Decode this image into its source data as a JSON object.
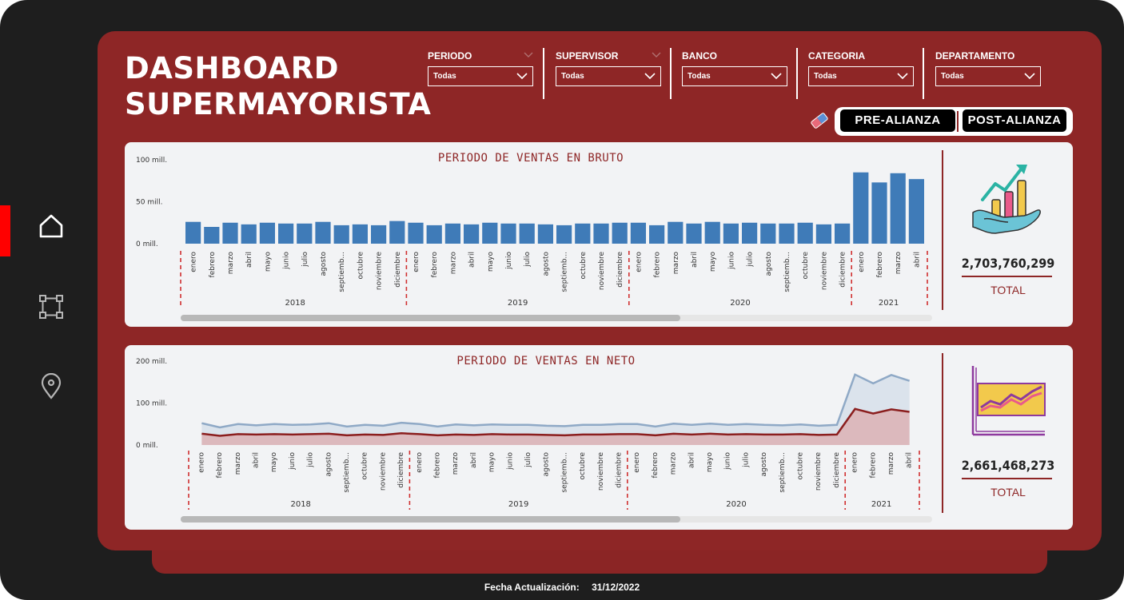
{
  "header": {
    "title_line1": "DASHBOARD",
    "title_line2": "SUPERMAYORISTA"
  },
  "filters": [
    {
      "label": "PERIODO",
      "value": "Todas"
    },
    {
      "label": "SUPERVISOR",
      "value": "Todas"
    },
    {
      "label": "BANCO",
      "value": "Todas"
    },
    {
      "label": "CATEGORIA",
      "value": "Todas"
    },
    {
      "label": "DEPARTAMENTO",
      "value": "Todas"
    }
  ],
  "toggle": {
    "pre_label": "PRE-ALIANZA",
    "post_label": "POST-ALIANZA"
  },
  "sidebar": {
    "icons": [
      "home-icon",
      "flow-icon",
      "location-pin-icon"
    ],
    "active_index": 0
  },
  "colors": {
    "accent": "#8e2626",
    "bar": "#3f7bb8",
    "line_total": "#8fa9c6",
    "line_net": "#8b1e1e",
    "active_nav": "#ff0000"
  },
  "footer": {
    "label": "Fecha Actualización:",
    "date": "31/12/2022"
  },
  "panels": [
    {
      "title": "PERIODO DE VENTAS EN BRUTO",
      "kpi_value": "2,703,760,299",
      "kpi_label": "TOTAL",
      "icon": "growth-chart-hand-icon"
    },
    {
      "title": "PERIODO DE VENTAS EN NETO",
      "kpi_value": "2,661,468,273",
      "kpi_label": "TOTAL",
      "icon": "line-chart-icon"
    }
  ],
  "chart_data": [
    {
      "type": "bar",
      "title": "PERIODO DE VENTAS EN BRUTO",
      "yticks": [
        "100 mill.",
        "50 mill.",
        "0 mill."
      ],
      "ylim": [
        0,
        100
      ],
      "months": [
        "enero",
        "febrero",
        "marzo",
        "abril",
        "mayo",
        "junio",
        "julio",
        "agosto",
        "septiemb...",
        "octubre",
        "noviembre",
        "diciembre"
      ],
      "months_2021": [
        "enero",
        "febrero",
        "marzo",
        "abril"
      ],
      "years": [
        "2018",
        "2019",
        "2020",
        "2021"
      ],
      "values": [
        26,
        20,
        25,
        23,
        25,
        24,
        24,
        26,
        22,
        23,
        22,
        27,
        25,
        22,
        24,
        23,
        25,
        24,
        24,
        23,
        22,
        24,
        24,
        25,
        25,
        22,
        26,
        24,
        26,
        24,
        25,
        24,
        24,
        25,
        23,
        24,
        85,
        73,
        84,
        77
      ],
      "unit": "mill."
    },
    {
      "type": "area",
      "title": "PERIODO DE VENTAS EN NETO",
      "yticks": [
        "200 mill.",
        "100 mill.",
        "0 mill."
      ],
      "ylim": [
        0,
        200
      ],
      "months": [
        "enero",
        "febrero",
        "marzo",
        "abril",
        "mayo",
        "junio",
        "julio",
        "agosto",
        "septiemb...",
        "octubre",
        "noviembre",
        "diciembre"
      ],
      "months_2021": [
        "enero",
        "febrero",
        "marzo",
        "abril"
      ],
      "years": [
        "2018",
        "2019",
        "2020",
        "2021"
      ],
      "series": [
        {
          "values": [
            52,
            42,
            50,
            47,
            50,
            48,
            49,
            52,
            44,
            48,
            46,
            53,
            50,
            44,
            49,
            47,
            49,
            48,
            48,
            46,
            45,
            48,
            48,
            50,
            50,
            44,
            51,
            48,
            51,
            48,
            50,
            48,
            47,
            49,
            46,
            48,
            168,
            147,
            167,
            153
          ]
        },
        {
          "values": [
            27,
            22,
            26,
            25,
            26,
            25,
            26,
            27,
            23,
            25,
            24,
            28,
            26,
            23,
            25,
            24,
            26,
            25,
            25,
            24,
            23,
            25,
            25,
            26,
            26,
            23,
            27,
            25,
            27,
            25,
            26,
            25,
            25,
            26,
            24,
            25,
            86,
            75,
            85,
            79
          ]
        }
      ],
      "unit": "mill."
    }
  ]
}
